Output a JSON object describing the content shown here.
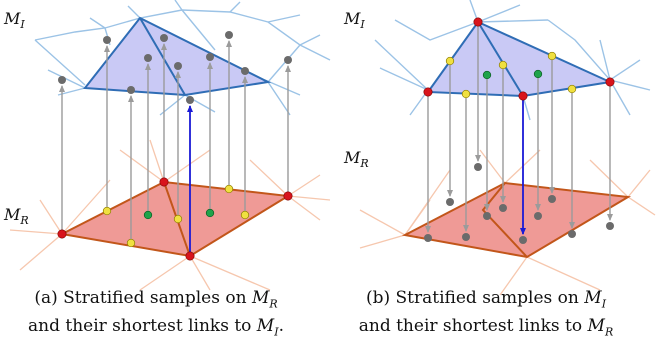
{
  "panels": {
    "a": {
      "label_top": "M",
      "label_top_sub": "I",
      "label_bottom": "M",
      "label_bottom_sub": "R"
    },
    "b": {
      "label_top": "M",
      "label_top_sub": "I",
      "label_middle": "M",
      "label_middle_sub": "R"
    }
  },
  "captions": {
    "a": {
      "prefix": "(a)",
      "line1_text": "Stratified samples on ",
      "line1_var": "M",
      "line1_sub": "R",
      "line2_text": "and their shortest links to ",
      "line2_var": "M",
      "line2_sub": "I",
      "line2_end": "."
    },
    "b": {
      "prefix": "(b)",
      "line1_text": "Stratified samples on ",
      "line1_var": "M",
      "line1_sub": "I",
      "line2_text": "and their shortest links to ",
      "line2_var": "M",
      "line2_sub": "R",
      "line2_end": ""
    }
  },
  "colors": {
    "top_fill": "#c9c9f5",
    "top_edge": "#2f6db5",
    "top_mesh": "#9cc3e6",
    "bottom_fill": "#ef9a96",
    "bottom_edge": "#c2561a",
    "bottom_mesh": "#f6c7ae",
    "link_gray": "#9b9b9b",
    "link_blue": "#1a1ad6",
    "vertex_red": "#d8141c",
    "sample_yellow": "#f0e040",
    "sample_green": "#1fa34a",
    "point_gray": "#6b6b6b"
  }
}
